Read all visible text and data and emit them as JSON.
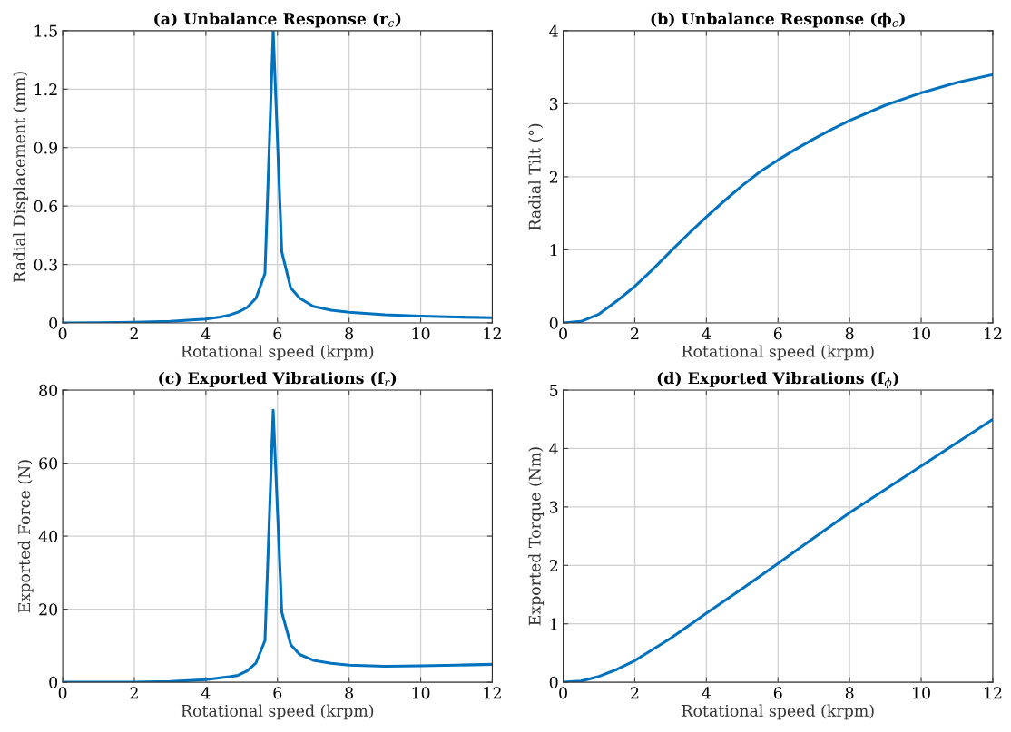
{
  "chart_data": [
    {
      "type": "line",
      "title": "(a) Unbalance Response (r$_{c}$)",
      "xlabel": "Rotational speed (krpm)",
      "ylabel": "Radial Displacement (mm)",
      "x": [
        0,
        1,
        2,
        3,
        4,
        4.4,
        4.65,
        4.9,
        5.15,
        5.4,
        5.65,
        5.88,
        6.12,
        6.37,
        6.62,
        7,
        7.5,
        8,
        9,
        10,
        11,
        12
      ],
      "series": [
        {
          "color": "#0072bd",
          "values": [
            0,
            0.001,
            0.003,
            0.008,
            0.02,
            0.03,
            0.04,
            0.055,
            0.079,
            0.127,
            0.254,
            1.5,
            0.365,
            0.179,
            0.127,
            0.085,
            0.065,
            0.055,
            0.042,
            0.035,
            0.03,
            0.027
          ]
        }
      ],
      "xlim": [
        0,
        12
      ],
      "xticks": [
        0,
        2,
        4,
        6,
        8,
        10,
        12
      ],
      "ylim": [
        0,
        1.5
      ],
      "yticks": [
        0,
        0.3,
        0.6,
        0.9,
        1.2,
        1.5
      ],
      "grid": true,
      "line_style": "solid"
    },
    {
      "type": "line",
      "title": "(b) Unbalance Response (ϕ$_{c}$)",
      "xlabel": "Rotational speed (krpm)",
      "ylabel": "Radial Tilt (°)",
      "x": [
        0,
        0.5,
        1,
        1.5,
        2,
        2.5,
        3,
        3.5,
        4,
        4.5,
        5,
        5.5,
        6,
        6.5,
        7,
        7.5,
        8,
        9,
        10,
        11,
        12
      ],
      "series": [
        {
          "color": "#0072bd",
          "values": [
            0,
            0.02,
            0.12,
            0.3,
            0.5,
            0.73,
            0.98,
            1.22,
            1.45,
            1.67,
            1.88,
            2.07,
            2.23,
            2.38,
            2.52,
            2.65,
            2.77,
            2.98,
            3.15,
            3.29,
            3.4
          ]
        }
      ],
      "xlim": [
        0,
        12
      ],
      "xticks": [
        0,
        2,
        4,
        6,
        8,
        10,
        12
      ],
      "ylim": [
        0,
        4
      ],
      "yticks": [
        0,
        1,
        2,
        3,
        4
      ],
      "grid": true,
      "line_style": "solid"
    },
    {
      "type": "line",
      "title": "(c) Exported Vibrations (f$_{r}$)",
      "xlabel": "Rotational speed (krpm)",
      "ylabel": "Exported Force (N)",
      "x": [
        0,
        1,
        2,
        3,
        4,
        4.4,
        4.65,
        4.9,
        5.15,
        5.4,
        5.65,
        5.88,
        6.12,
        6.37,
        6.62,
        7,
        7.5,
        8,
        9,
        10,
        11,
        12
      ],
      "series": [
        {
          "color": "#0072bd",
          "values": [
            0,
            0,
            0,
            0.2,
            0.7,
            1.2,
            1.5,
            1.9,
            3.1,
            5.3,
            11.4,
            74.5,
            19.2,
            10.3,
            7.6,
            6,
            5.2,
            4.7,
            4.4,
            4.5,
            4.7,
            4.9
          ]
        }
      ],
      "xlim": [
        0,
        12
      ],
      "xticks": [
        0,
        2,
        4,
        6,
        8,
        10,
        12
      ],
      "ylim": [
        0,
        80
      ],
      "yticks": [
        0,
        20,
        40,
        60,
        80
      ],
      "grid": true,
      "line_style": "solid"
    },
    {
      "type": "line",
      "title": "(d) Exported Vibrations (f$_{ϕ}$)",
      "xlabel": "Rotational speed (krpm)",
      "ylabel": "Exported Torque (Nm)",
      "x": [
        0,
        0.5,
        1,
        1.5,
        2,
        3,
        4,
        5,
        6,
        7,
        8,
        9,
        10,
        11,
        12
      ],
      "series": [
        {
          "color": "#0072bd",
          "values": [
            0,
            0.02,
            0.1,
            0.22,
            0.37,
            0.75,
            1.18,
            1.6,
            2.03,
            2.47,
            2.9,
            3.3,
            3.7,
            4.1,
            4.5
          ]
        }
      ],
      "xlim": [
        0,
        12
      ],
      "xticks": [
        0,
        2,
        4,
        6,
        8,
        10,
        12
      ],
      "ylim": [
        0,
        5
      ],
      "yticks": [
        0,
        1,
        2,
        3,
        4,
        5
      ],
      "grid": true,
      "line_style": "solid"
    }
  ]
}
